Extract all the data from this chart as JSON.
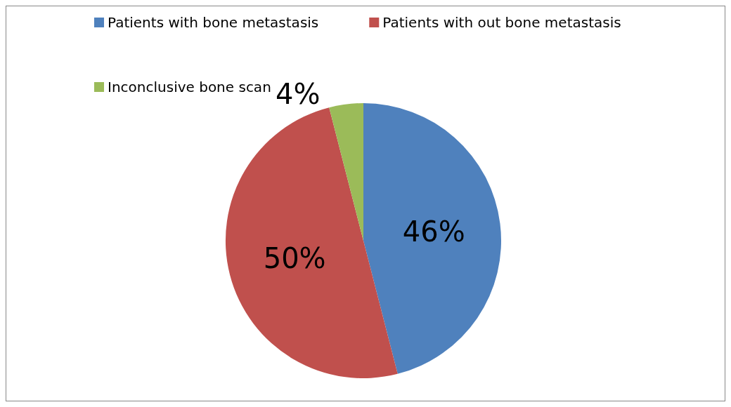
{
  "chart_data": {
    "type": "pie",
    "categories": [
      "Patients with bone metastasis",
      "Patients with out bone metastasis",
      "Inconclusive bone scan"
    ],
    "values": [
      46,
      50,
      4
    ],
    "colors": [
      "#4f81bd",
      "#c0504d",
      "#9bbb59"
    ],
    "value_labels": [
      "46%",
      "50%",
      "4%"
    ],
    "legend": "top"
  }
}
